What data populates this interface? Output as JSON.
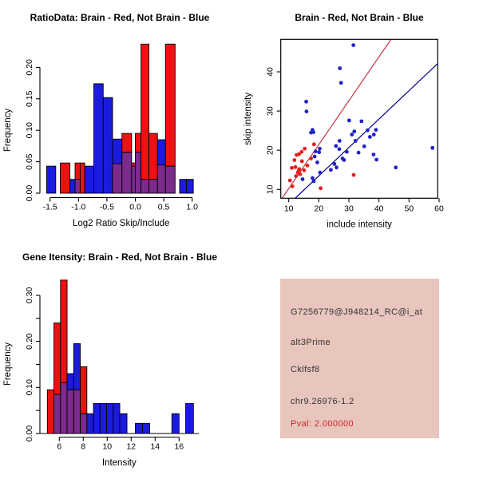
{
  "figure_bg": "#ffffff",
  "colors": {
    "red": "#ee1111",
    "blue": "#1b1bdf",
    "purple": "#7c2a8e",
    "point_red": "#e32020",
    "point_blue": "#2222cc",
    "line_red": "#cc3344",
    "line_blue": "#00008b",
    "axis": "#000000"
  },
  "chart_data": [
    {
      "id": "ratio_histogram",
      "type": "bar",
      "title": "RatioData: Brain - Red, Not Brain - Blue",
      "xlabel": "Log2 Ratio Skip/Include",
      "ylabel": "Frequency",
      "legend_note": "Brain = red, Not Brain = blue, overlap = purple",
      "xlim": [
        -1.7,
        1.1
      ],
      "ylim": [
        0,
        0.24
      ],
      "x_ticks": [
        -1.5,
        -1.0,
        -0.5,
        0.0,
        0.5,
        1.0
      ],
      "x_tick_labels": [
        "-1.5",
        "-1.0",
        "-0.5",
        "0.0",
        "0.5",
        "1.0"
      ],
      "y_ticks": [
        0,
        0.05,
        0.1,
        0.15,
        0.2
      ],
      "y_tick_labels": [
        "0.00",
        "0.05",
        "0.10",
        "0.15",
        "0.20"
      ],
      "columns": [
        {
          "x0": -1.56,
          "x1": -1.4,
          "blue": 0.043,
          "red": 0
        },
        {
          "x0": -1.32,
          "x1": -1.15,
          "blue": 0,
          "red": 0.048
        },
        {
          "x0": -1.15,
          "x1": -1.06,
          "blue": 0.022,
          "red": 0
        },
        {
          "x0": -1.06,
          "x1": -0.97,
          "blue": 0.022,
          "red": 0.048
        },
        {
          "x0": -0.97,
          "x1": -0.89,
          "blue": 0,
          "red": 0.048
        },
        {
          "x0": -0.89,
          "x1": -0.73,
          "blue": 0.043,
          "red": 0
        },
        {
          "x0": -0.73,
          "x1": -0.565,
          "blue": 0.174,
          "red": 0
        },
        {
          "x0": -0.565,
          "x1": -0.4,
          "blue": 0.152,
          "red": 0
        },
        {
          "x0": -0.4,
          "x1": -0.235,
          "blue": 0.086,
          "red": 0.047
        },
        {
          "x0": -0.235,
          "x1": -0.065,
          "blue": 0.065,
          "red": 0.095
        },
        {
          "x0": -0.065,
          "x1": 0.0,
          "blue": 0.043,
          "red": 0.048
        },
        {
          "x0": 0.0,
          "x1": 0.1,
          "blue": 0.065,
          "red": 0.095
        },
        {
          "x0": 0.1,
          "x1": 0.24,
          "blue": 0.022,
          "red": 0.237
        },
        {
          "x0": 0.24,
          "x1": 0.39,
          "blue": 0.022,
          "red": 0.095
        },
        {
          "x0": 0.39,
          "x1": 0.53,
          "blue": 0.085,
          "red": 0.045
        },
        {
          "x0": 0.53,
          "x1": 0.7,
          "blue": 0.043,
          "red": 0.237
        },
        {
          "x0": 0.78,
          "x1": 0.9,
          "blue": 0.022,
          "red": 0
        },
        {
          "x0": 0.9,
          "x1": 1.02,
          "blue": 0.022,
          "red": 0
        }
      ]
    },
    {
      "id": "intensity_scatter",
      "type": "scatter",
      "title": "Brain - Red, Not Brain - Blue",
      "xlabel": "include intensity",
      "ylabel": "skip intensity",
      "xlim": [
        8,
        62
      ],
      "ylim": [
        8,
        48
      ],
      "x_ticks": [
        10,
        20,
        30,
        40,
        50,
        60
      ],
      "x_tick_labels": [
        "10",
        "20",
        "30",
        "40",
        "50",
        "60"
      ],
      "y_ticks": [
        10,
        20,
        30,
        40
      ],
      "y_tick_labels": [
        "10",
        "20",
        "30",
        "40"
      ],
      "series": [
        {
          "name": "Brain",
          "color_key": "point_red",
          "points": [
            [
              10.4,
              12.3
            ],
            [
              11.2,
              10.8
            ],
            [
              11.0,
              15.5
            ],
            [
              11.9,
              17.5
            ],
            [
              12.2,
              15.7
            ],
            [
              12.4,
              13.4
            ],
            [
              12.6,
              18.8
            ],
            [
              13.0,
              14.3
            ],
            [
              13.3,
              14.8
            ],
            [
              13.5,
              15.2
            ],
            [
              13.4,
              19.0
            ],
            [
              13.8,
              13.9
            ],
            [
              14.3,
              19.6
            ],
            [
              14.4,
              17.2
            ],
            [
              15.1,
              14.9
            ],
            [
              15.3,
              20.4
            ],
            [
              16.2,
              16.1
            ],
            [
              17.4,
              17.9
            ],
            [
              18.4,
              21.5
            ],
            [
              20.6,
              10.3
            ],
            [
              31.6,
              13.7
            ]
          ]
        },
        {
          "name": "Not Brain",
          "color_key": "point_blue",
          "points": [
            [
              14.6,
              12.6
            ],
            [
              15.8,
              32.4
            ],
            [
              15.9,
              29.9
            ],
            [
              17.4,
              24.5
            ],
            [
              17.9,
              25.2
            ],
            [
              18.2,
              24.6
            ],
            [
              18.6,
              18.4
            ],
            [
              18.9,
              19.7
            ],
            [
              19.5,
              16.9
            ],
            [
              20.1,
              19.5
            ],
            [
              20.3,
              20.4
            ],
            [
              17.9,
              12.9
            ],
            [
              18.3,
              12.1
            ],
            [
              20.4,
              14.3
            ],
            [
              24.0,
              15.0
            ],
            [
              25.2,
              16.5
            ],
            [
              25.7,
              21.1
            ],
            [
              25.9,
              15.6
            ],
            [
              26.8,
              20.3
            ],
            [
              26.9,
              22.4
            ],
            [
              27.0,
              40.9
            ],
            [
              27.4,
              37.2
            ],
            [
              27.9,
              17.9
            ],
            [
              28.4,
              17.5
            ],
            [
              29.3,
              19.6
            ],
            [
              30.1,
              27.6
            ],
            [
              31.0,
              24.0
            ],
            [
              31.5,
              46.8
            ],
            [
              31.8,
              24.8
            ],
            [
              32.2,
              22.4
            ],
            [
              33.2,
              19.4
            ],
            [
              34.2,
              27.4
            ],
            [
              35.1,
              21.0
            ],
            [
              36.2,
              25.1
            ],
            [
              37.0,
              23.4
            ],
            [
              38.3,
              24.0
            ],
            [
              38.2,
              18.9
            ],
            [
              39.0,
              25.2
            ],
            [
              39.2,
              17.6
            ],
            [
              45.6,
              15.6
            ],
            [
              57.8,
              20.6
            ]
          ]
        }
      ],
      "lines": [
        {
          "color_key": "line_red",
          "x1": 7.85,
          "y1": 7.85,
          "x2": 44.0,
          "y2": 48.3
        },
        {
          "color_key": "line_blue",
          "x1": 12.2,
          "y1": 7.8,
          "x2": 59.6,
          "y2": 42.15
        }
      ]
    },
    {
      "id": "gene_intensity_histogram",
      "type": "bar",
      "title": "Gene Itensity: Brain - Red, Not Brain - Blue",
      "xlabel": "Intensity",
      "ylabel": "Frequency",
      "legend_note": "Brain = red, Not Brain = blue, overlap = purple",
      "xlim": [
        4.5,
        17.5
      ],
      "ylim": [
        0,
        0.34
      ],
      "x_ticks": [
        6,
        8,
        10,
        12,
        14,
        16
      ],
      "x_tick_labels": [
        "6",
        "8",
        "10",
        "12",
        "14",
        "16"
      ],
      "y_ticks": [
        0,
        0.05,
        0.1,
        0.15,
        0.2,
        0.25,
        0.3
      ],
      "y_tick_labels": [
        "0.00",
        "",
        "0.10",
        "",
        "0.20",
        "",
        "0.30"
      ],
      "columns": [
        {
          "x0": 5.0,
          "x1": 5.55,
          "blue": 0,
          "red": 0.095
        },
        {
          "x0": 5.55,
          "x1": 6.1,
          "blue": 0.085,
          "red": 0.24
        },
        {
          "x0": 6.1,
          "x1": 6.65,
          "blue": 0.11,
          "red": 0.333
        },
        {
          "x0": 6.65,
          "x1": 7.2,
          "blue": 0.13,
          "red": 0.095
        },
        {
          "x0": 7.2,
          "x1": 7.75,
          "blue": 0.195,
          "red": 0.095
        },
        {
          "x0": 7.75,
          "x1": 8.3,
          "blue": 0.043,
          "red": 0.145
        },
        {
          "x0": 8.3,
          "x1": 8.85,
          "blue": 0.043,
          "red": 0
        },
        {
          "x0": 8.85,
          "x1": 9.4,
          "blue": 0.065,
          "red": 0
        },
        {
          "x0": 9.4,
          "x1": 9.95,
          "blue": 0.065,
          "red": 0
        },
        {
          "x0": 9.95,
          "x1": 10.5,
          "blue": 0.065,
          "red": 0
        },
        {
          "x0": 10.5,
          "x1": 11.05,
          "blue": 0.065,
          "red": 0
        },
        {
          "x0": 11.05,
          "x1": 11.65,
          "blue": 0.043,
          "red": 0
        },
        {
          "x0": 12.35,
          "x1": 12.95,
          "blue": 0.022,
          "red": 0
        },
        {
          "x0": 12.95,
          "x1": 13.55,
          "blue": 0.022,
          "red": 0
        },
        {
          "x0": 15.4,
          "x1": 16.0,
          "blue": 0.043,
          "red": 0
        },
        {
          "x0": 16.55,
          "x1": 17.2,
          "blue": 0.065,
          "red": 0
        }
      ]
    },
    {
      "id": "gene_info",
      "type": "table",
      "bg_color": "#e9c6bd",
      "text_color": "#333333",
      "pval_color": "#cd2424",
      "lines": [
        "G7256779@J948214_RC@i_at",
        "alt3Prime",
        "Cklfsf8",
        "chr9.26976-1.2"
      ],
      "pval_line": "Pval: 2.000000"
    }
  ]
}
